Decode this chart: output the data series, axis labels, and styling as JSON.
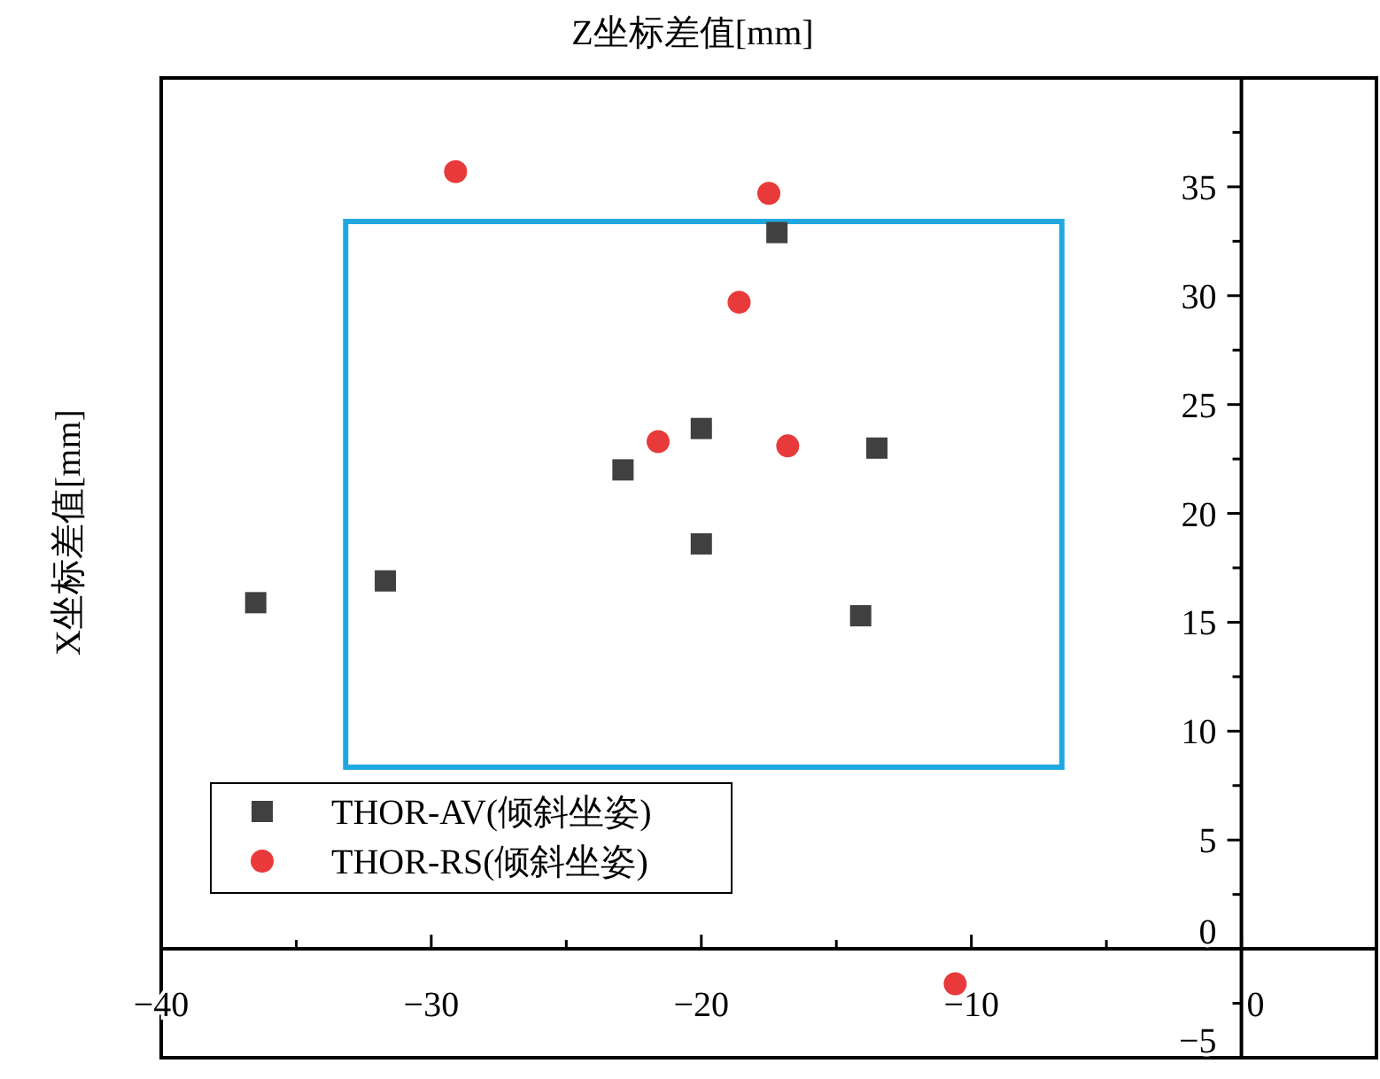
{
  "chart_data": {
    "type": "scatter",
    "xlabel": "Z坐标差值[mm]",
    "ylabel": "X坐标差值[mm]",
    "xlim": [
      -40,
      5
    ],
    "ylim": [
      -5,
      40
    ],
    "xticks": [
      -40,
      {
        "value": -35,
        "label": null
      },
      -30,
      {
        "value": -25,
        "label": null
      },
      -20,
      {
        "value": -15,
        "label": null
      },
      -10,
      {
        "value": -5,
        "label": null
      },
      0
    ],
    "yticks": [
      -5,
      {
        "value": -2.5,
        "label": null
      },
      0,
      {
        "value": 2.5,
        "label": null
      },
      5,
      {
        "value": 7.5,
        "label": null
      },
      10,
      {
        "value": 12.5,
        "label": null
      },
      15,
      {
        "value": 17.5,
        "label": null
      },
      20,
      {
        "value": 22.5,
        "label": null
      },
      25,
      {
        "value": 27.5,
        "label": null
      },
      30,
      {
        "value": 32.5,
        "label": null
      },
      35,
      {
        "value": 37.5,
        "label": null
      }
    ],
    "legend": "bottom left",
    "series": [
      {
        "name": "THOR-AV(倾斜坐姿)",
        "color": "#404040",
        "marker": "square",
        "x": [
          -36.5,
          -31.7,
          -22.9,
          -20.0,
          -20.0,
          -17.2,
          -13.5,
          -14.1
        ],
        "values": [
          15.9,
          16.9,
          22.0,
          23.9,
          18.6,
          32.9,
          23.0,
          15.3
        ]
      },
      {
        "name": "THOR-RS(倾斜坐姿)",
        "color": "#e83a3a",
        "marker": "circle",
        "x": [
          -29.1,
          -17.5,
          -18.6,
          -21.6,
          -16.8,
          -10.6
        ],
        "values": [
          35.7,
          34.7,
          29.7,
          23.3,
          23.1,
          -1.6
        ]
      }
    ]
  }
}
